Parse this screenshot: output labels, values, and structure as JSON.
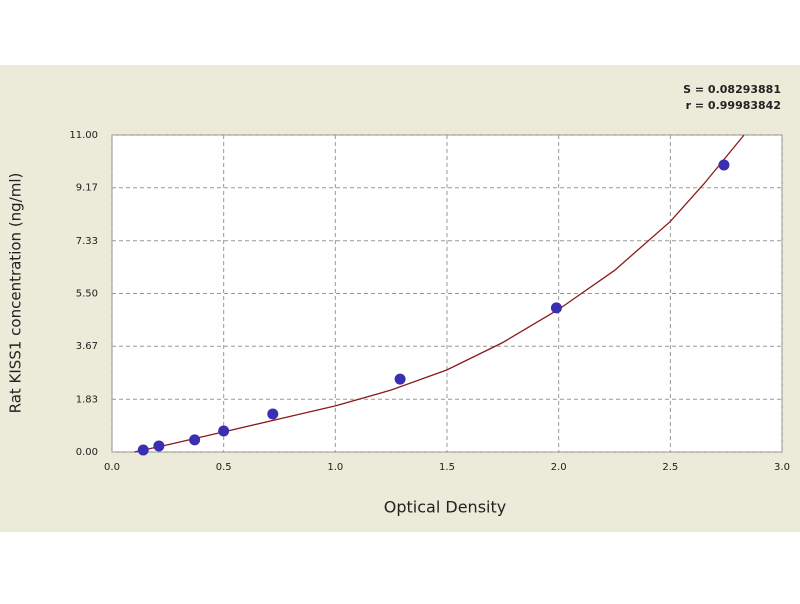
{
  "chart_data": {
    "type": "scatter",
    "x_label": "Optical Density",
    "y_label": "Rat KISS1 concentration (ng/ml)",
    "annotations": [
      "S = 0.08293881",
      "r = 0.99983842"
    ],
    "xlim": [
      0,
      3
    ],
    "ylim": [
      0,
      11
    ],
    "xticks": [
      {
        "value": 0,
        "label": "0.0"
      },
      0.5,
      {
        "value": 1,
        "label": "1.0"
      },
      1.5,
      {
        "value": 2,
        "label": "2.0"
      },
      2.5,
      {
        "value": 3,
        "label": "3.0"
      }
    ],
    "yticks": [
      {
        "value": 0,
        "label": "0.00"
      },
      {
        "value": 1.83,
        "label": "1.83"
      },
      {
        "value": 3.67,
        "label": "3.67"
      },
      {
        "value": 5.5,
        "label": "5.50"
      },
      {
        "value": 7.33,
        "label": "7.33"
      },
      {
        "value": 9.17,
        "label": "9.17"
      },
      {
        "value": 11,
        "label": "11.00"
      }
    ],
    "grid": true,
    "series": [
      {
        "color": "#3a2fb0",
        "x": [
          0.14,
          0.21,
          0.37,
          0.5,
          0.72,
          1.29,
          1.99,
          2.74
        ],
        "values": [
          0.07,
          0.21,
          0.42,
          0.73,
          1.32,
          2.53,
          5.0,
          9.96
        ]
      },
      {
        "color": "#8b1a1a",
        "line": true,
        "x": [
          0.1,
          0.25,
          0.5,
          0.75,
          1.0,
          1.25,
          1.5,
          1.75,
          2.0,
          2.25,
          2.5,
          2.65,
          2.83
        ],
        "values": [
          0.0,
          0.25,
          0.7,
          1.15,
          1.6,
          2.15,
          2.85,
          3.8,
          4.95,
          6.3,
          8.0,
          9.3,
          11.0
        ]
      }
    ]
  }
}
